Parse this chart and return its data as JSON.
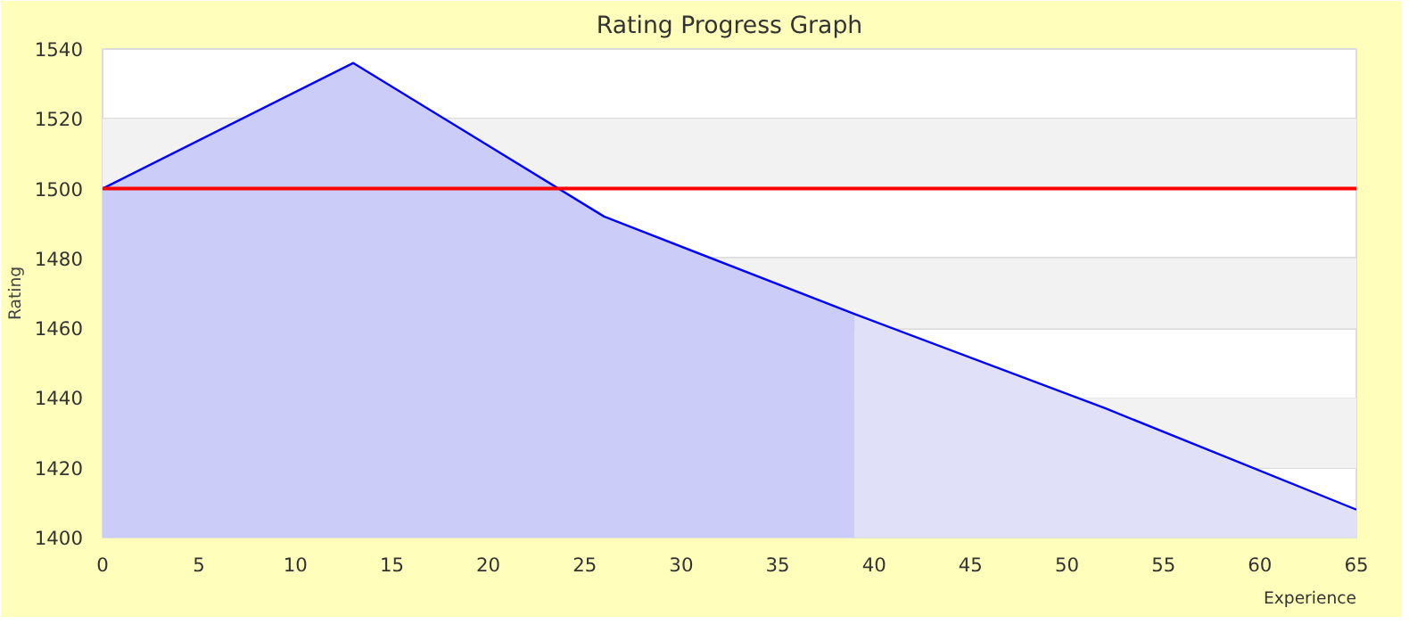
{
  "chart_data": {
    "type": "line",
    "title": "Rating Progress Graph",
    "xlabel": "Experience",
    "ylabel": "Rating",
    "series": [
      {
        "type": "area",
        "color": "#ccccf9",
        "x": [
          0,
          13,
          26,
          39
        ],
        "values": [
          1500,
          1536,
          1492,
          1464
        ]
      },
      {
        "type": "area",
        "color": "#e0e0f9",
        "x": [
          39,
          52,
          65
        ],
        "values": [
          1464,
          1437,
          1408
        ]
      },
      {
        "color": "#0000ff",
        "x": [
          0,
          13,
          26,
          39,
          52,
          65
        ],
        "values": [
          1500,
          1536,
          1492,
          1464,
          1437,
          1408
        ]
      }
    ],
    "xlim": [
      0,
      65
    ],
    "xticks": [
      0,
      5,
      10,
      15,
      20,
      25,
      30,
      35,
      40,
      45,
      50,
      55,
      60,
      65
    ],
    "ylim": [
      1400,
      1540
    ],
    "yticks": [
      1400,
      1420,
      1440,
      1460,
      1480,
      1500,
      1520,
      1540
    ],
    "grid": "y",
    "marker": "none",
    "line_style": "solid",
    "ref_lines": [
      {
        "axis": "y",
        "value": 1500,
        "color": "#ff0000"
      }
    ],
    "bands": [
      {
        "axis": "y",
        "from": 1500,
        "to": 1520,
        "color": "#f2f2f2"
      },
      {
        "axis": "y",
        "from": 1460,
        "to": 1480,
        "color": "#f2f2f2"
      },
      {
        "axis": "y",
        "from": 1420,
        "to": 1440,
        "color": "#f2f2f2"
      }
    ]
  }
}
